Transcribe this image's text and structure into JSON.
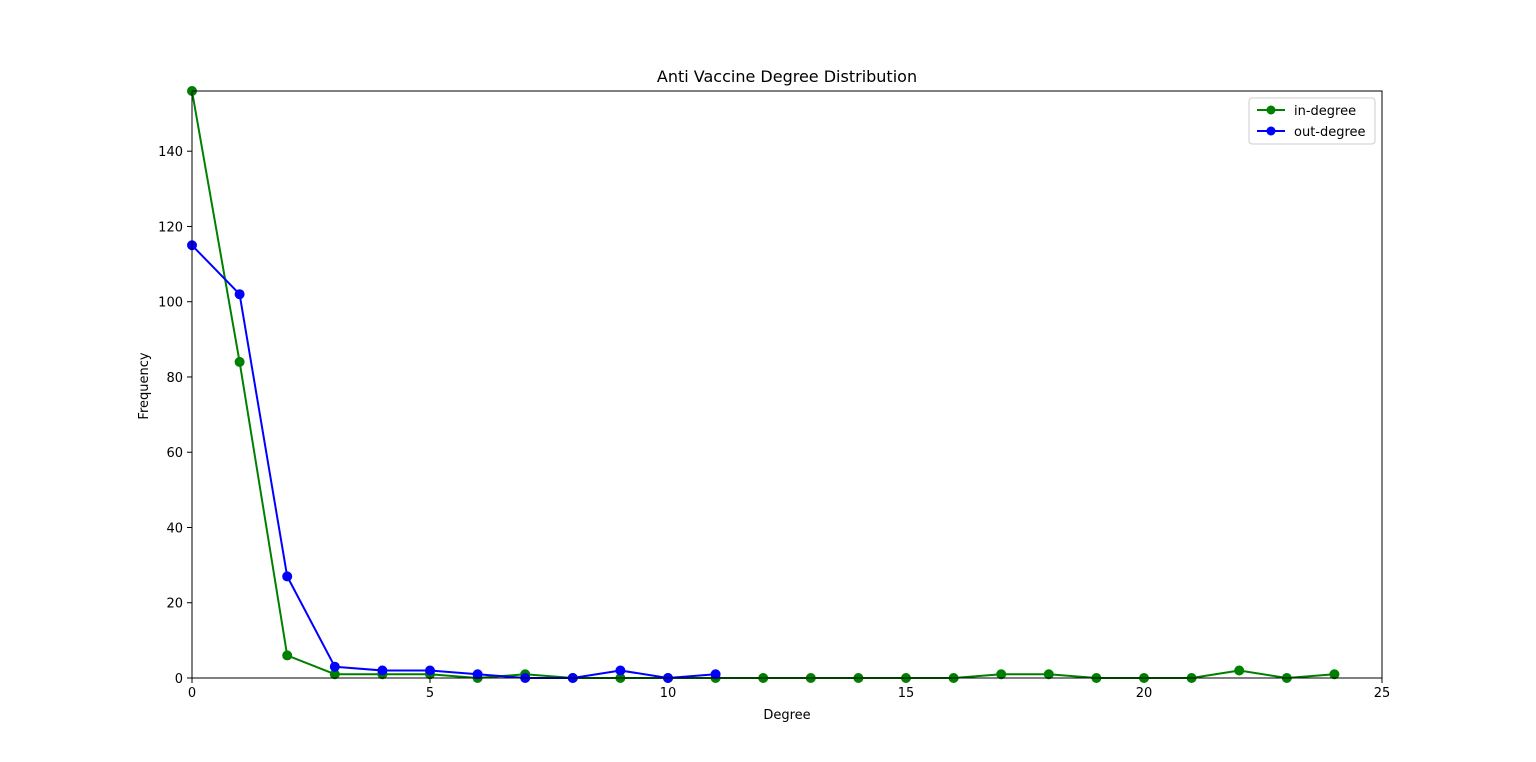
{
  "chart_data": {
    "type": "line",
    "title": "Anti Vaccine Degree Distribution",
    "xlabel": "Degree",
    "ylabel": "Frequency",
    "xlim": [
      0,
      25
    ],
    "ylim": [
      0,
      156
    ],
    "xticks": [
      0,
      5,
      10,
      15,
      20,
      25
    ],
    "yticks": [
      0,
      20,
      40,
      60,
      80,
      100,
      120,
      140
    ],
    "grid": false,
    "legend_position": "top-right",
    "series": [
      {
        "name": "in-degree",
        "color": "#008000",
        "marker": "circle",
        "x": [
          0,
          1,
          2,
          3,
          4,
          5,
          6,
          7,
          8,
          9,
          10,
          11,
          12,
          13,
          14,
          15,
          16,
          17,
          18,
          19,
          20,
          21,
          22,
          23,
          24
        ],
        "y": [
          156,
          84,
          6,
          1,
          1,
          1,
          0,
          1,
          0,
          0,
          0,
          0,
          0,
          0,
          0,
          0,
          0,
          1,
          1,
          0,
          0,
          0,
          2,
          0,
          1
        ]
      },
      {
        "name": "out-degree",
        "color": "#0000ff",
        "marker": "circle",
        "x": [
          0,
          1,
          2,
          3,
          4,
          5,
          6,
          7,
          8,
          9,
          10,
          11
        ],
        "y": [
          115,
          102,
          27,
          3,
          2,
          2,
          1,
          0,
          0,
          2,
          0,
          1
        ]
      }
    ]
  }
}
